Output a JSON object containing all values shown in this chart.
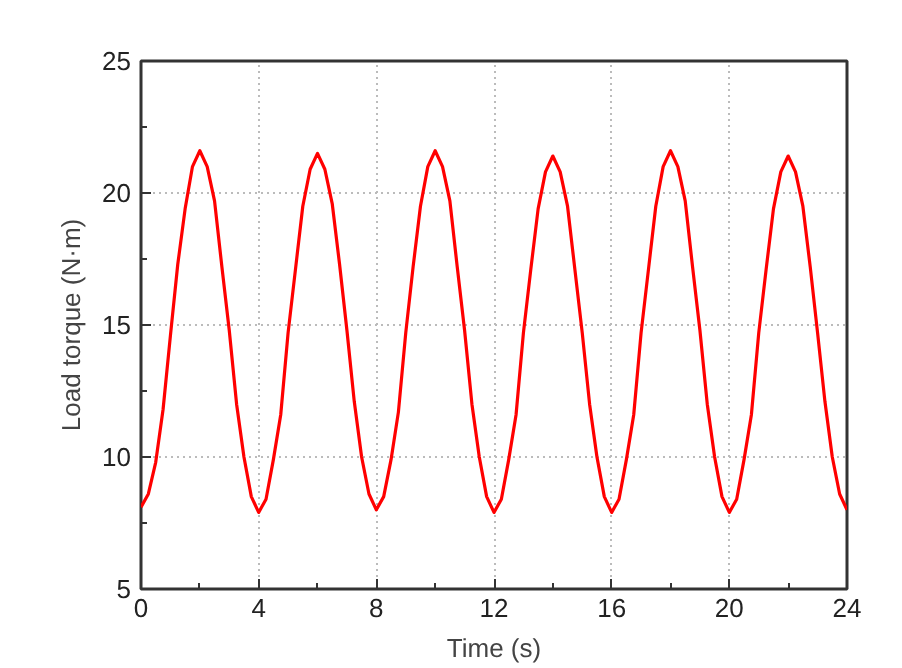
{
  "chart_data": {
    "type": "line",
    "xlabel": "Time (s)",
    "ylabel": "Load torque (N·m)",
    "xlim": [
      0,
      24
    ],
    "ylim": [
      5,
      25
    ],
    "xticks": [
      0,
      4,
      8,
      12,
      16,
      20,
      24
    ],
    "yticks": [
      5,
      10,
      15,
      20,
      25
    ],
    "grid": true,
    "marker": "none",
    "line_style": "solid",
    "x": [
      0,
      0.25,
      0.5,
      0.75,
      1,
      1.25,
      1.5,
      1.75,
      2,
      2.25,
      2.5,
      2.75,
      3,
      3.25,
      3.5,
      3.75,
      4,
      4.25,
      4.5,
      4.75,
      5,
      5.25,
      5.5,
      5.75,
      6,
      6.25,
      6.5,
      6.75,
      7,
      7.25,
      7.5,
      7.75,
      8,
      8.25,
      8.5,
      8.75,
      9,
      9.25,
      9.5,
      9.75,
      10,
      10.25,
      10.5,
      10.75,
      11,
      11.25,
      11.5,
      11.75,
      12,
      12.25,
      12.5,
      12.75,
      13,
      13.25,
      13.5,
      13.75,
      14,
      14.25,
      14.5,
      14.75,
      15,
      15.25,
      15.5,
      15.75,
      16,
      16.25,
      16.5,
      16.75,
      17,
      17.25,
      17.5,
      17.75,
      18,
      18.25,
      18.5,
      18.75,
      19,
      19.25,
      19.5,
      19.75,
      20,
      20.25,
      20.5,
      20.75,
      21,
      21.25,
      21.5,
      21.75,
      22,
      22.25,
      22.5,
      22.75,
      23,
      23.25,
      23.5,
      23.75,
      24
    ],
    "series": [
      {
        "color": "#ff0000",
        "values": [
          8.1,
          8.6,
          9.8,
          11.8,
          14.6,
          17.3,
          19.4,
          21.0,
          21.6,
          21.0,
          19.7,
          17.2,
          14.8,
          12.0,
          10.0,
          8.5,
          7.9,
          8.4,
          9.9,
          11.6,
          14.7,
          17.1,
          19.5,
          20.9,
          21.5,
          20.9,
          19.6,
          17.3,
          14.8,
          12.1,
          10.0,
          8.6,
          8.0,
          8.5,
          9.9,
          11.7,
          14.7,
          17.2,
          19.5,
          21.0,
          21.6,
          21.0,
          19.7,
          17.2,
          14.8,
          12.0,
          10.0,
          8.5,
          7.9,
          8.4,
          9.9,
          11.6,
          14.7,
          17.1,
          19.4,
          20.8,
          21.4,
          20.8,
          19.5,
          17.1,
          14.7,
          12.0,
          10.0,
          8.5,
          7.9,
          8.4,
          9.9,
          11.6,
          14.7,
          17.1,
          19.5,
          21.0,
          21.6,
          21.0,
          19.7,
          17.2,
          14.8,
          12.0,
          10.0,
          8.5,
          7.9,
          8.4,
          9.9,
          11.6,
          14.7,
          17.1,
          19.4,
          20.8,
          21.4,
          20.8,
          19.5,
          17.2,
          14.7,
          12.1,
          10.0,
          8.6,
          8.0
        ]
      }
    ]
  }
}
